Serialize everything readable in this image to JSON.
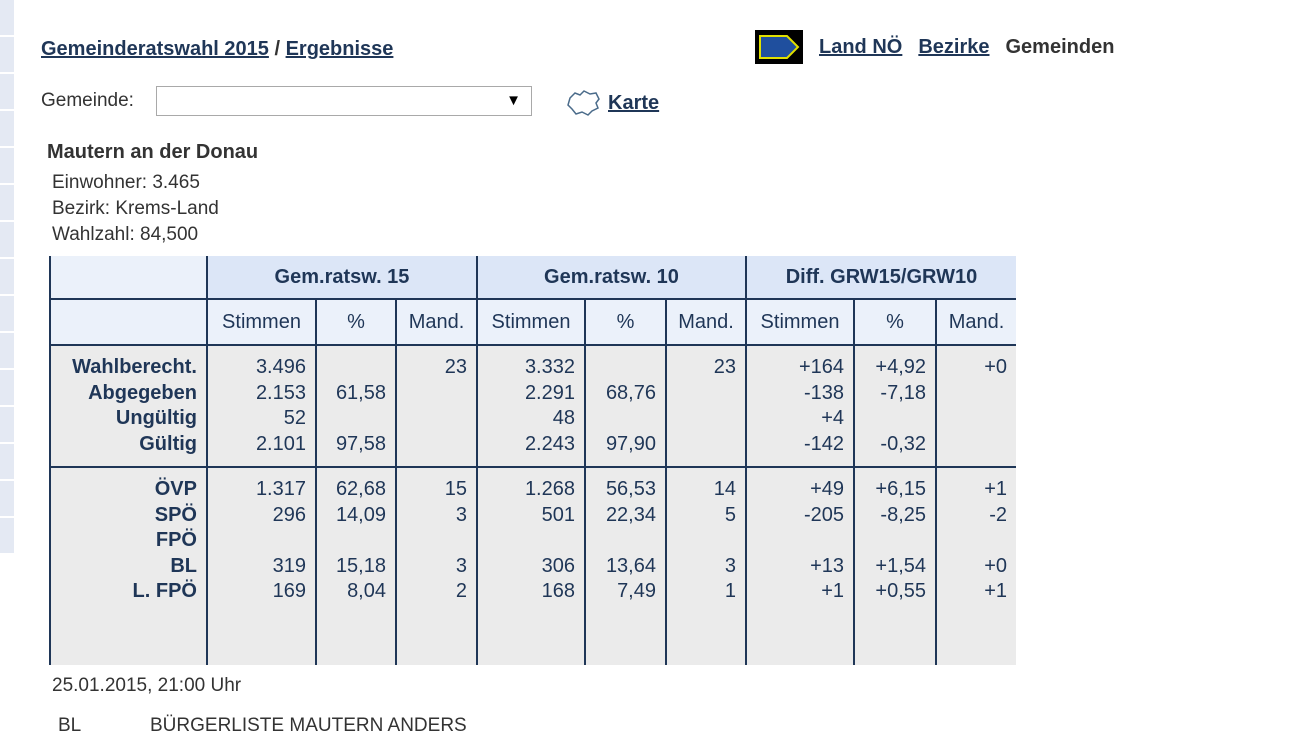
{
  "breadcrumb": {
    "election": "Gemeinderatswahl 2015",
    "separator": "/",
    "results": "Ergebnisse"
  },
  "top_nav": {
    "land": "Land NÖ",
    "bezirke": "Bezirke",
    "gemeinden": "Gemeinden"
  },
  "selector": {
    "label": "Gemeinde:",
    "value": "",
    "arrow": "▼"
  },
  "karte_link": "Karte",
  "municipality": {
    "name": "Mautern an der Donau",
    "einwohner": "Einwohner: 3.465",
    "bezirk": "Bezirk: Krems-Land",
    "wahlzahl": "Wahlzahl: 84,500"
  },
  "table": {
    "groups": [
      "Gem.ratsw. 15",
      "Gem.ratsw. 10",
      "Diff. GRW15/GRW10"
    ],
    "subheaders": [
      "Stimmen",
      "%",
      "Mand.",
      "Stimmen",
      "%",
      "Mand.",
      "Stimmen",
      "%",
      "Mand."
    ],
    "summary_rows": [
      [
        "Wahlberecht.",
        "3.496",
        "",
        "23",
        "3.332",
        "",
        "23",
        "+164",
        "+4,92",
        "+0"
      ],
      [
        "Abgegeben",
        "2.153",
        "61,58",
        "",
        "2.291",
        "68,76",
        "",
        "-138",
        "-7,18",
        ""
      ],
      [
        "Ungültig",
        "52",
        "",
        "",
        "48",
        "",
        "",
        "+4",
        "",
        ""
      ],
      [
        "Gültig",
        "2.101",
        "97,58",
        "",
        "2.243",
        "97,90",
        "",
        "-142",
        "-0,32",
        ""
      ]
    ],
    "party_rows": [
      [
        "ÖVP",
        "1.317",
        "62,68",
        "15",
        "1.268",
        "56,53",
        "14",
        "+49",
        "+6,15",
        "+1"
      ],
      [
        "SPÖ",
        "296",
        "14,09",
        "3",
        "501",
        "22,34",
        "5",
        "-205",
        "-8,25",
        "-2"
      ],
      [
        "FPÖ",
        "",
        "",
        "",
        "",
        "",
        "",
        "",
        "",
        ""
      ],
      [
        "BL",
        "319",
        "15,18",
        "3",
        "306",
        "13,64",
        "3",
        "+13",
        "+1,54",
        "+0"
      ],
      [
        "L. FPÖ",
        "169",
        "8,04",
        "2",
        "168",
        "7,49",
        "1",
        "+1",
        "+0,55",
        "+1"
      ]
    ]
  },
  "timestamp": "25.01.2015, 21:00 Uhr",
  "legend": {
    "abbr": "BL",
    "name": "BÜRGERLISTE MAUTERN ANDERS"
  },
  "colors": {
    "header": "#dce6f7",
    "subheader": "#ebf1fa",
    "body": "#ebebeb",
    "text": "#1f3657",
    "link": "#1f3657"
  },
  "icons": {
    "land_icon": "lower-austria-shape-icon",
    "karte_icon": "map-outline-icon"
  }
}
